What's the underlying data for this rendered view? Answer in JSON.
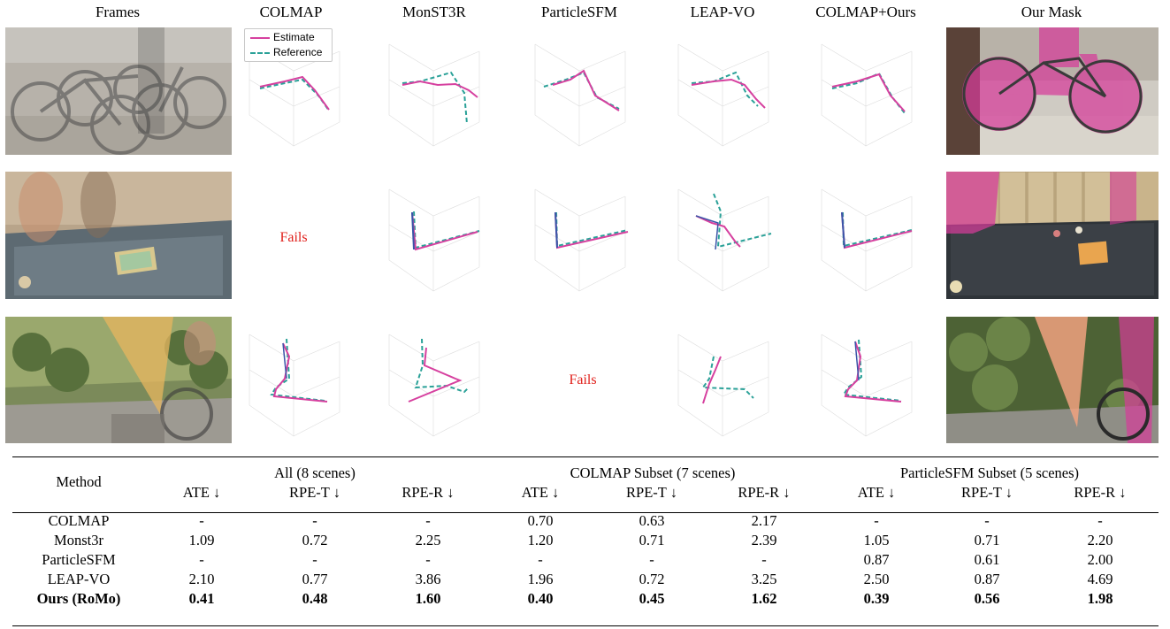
{
  "figure": {
    "column_headers": [
      "Frames",
      "COLMAP",
      "MonST3R",
      "ParticleSFM",
      "LEAP-VO",
      "COLMAP+Ours",
      "Our Mask"
    ],
    "legend": {
      "estimate": "Estimate",
      "reference": "Reference"
    },
    "fails_label": "Fails",
    "colors": {
      "estimate": "#d6409f",
      "reference": "#2aa198",
      "fails": "#e0201b",
      "mask": "#d63c9a"
    }
  },
  "table": {
    "method_header": "Method",
    "groups": [
      "All (8 scenes)",
      "COLMAP Subset (7 scenes)",
      "ParticleSFM Subset (5 scenes)"
    ],
    "metrics": [
      "ATE ↓",
      "RPE-T ↓",
      "RPE-R ↓",
      "ATE ↓",
      "RPE-T ↓",
      "RPE-R ↓",
      "ATE ↓",
      "RPE-T ↓",
      "RPE-R ↓"
    ],
    "rows": [
      {
        "method": "COLMAP",
        "values": [
          "-",
          "-",
          "-",
          "0.70",
          "0.63",
          "2.17",
          "-",
          "-",
          "-"
        ]
      },
      {
        "method": "Monst3r",
        "values": [
          "1.09",
          "0.72",
          "2.25",
          "1.20",
          "0.71",
          "2.39",
          "1.05",
          "0.71",
          "2.20"
        ]
      },
      {
        "method": "ParticleSFM",
        "values": [
          "-",
          "-",
          "-",
          "-",
          "-",
          "-",
          "0.87",
          "0.61",
          "2.00"
        ]
      },
      {
        "method": "LEAP-VO",
        "values": [
          "2.10",
          "0.77",
          "3.86",
          "1.96",
          "0.72",
          "3.25",
          "2.50",
          "0.87",
          "4.69"
        ]
      },
      {
        "method": "Ours (RoMo)",
        "values": [
          "0.41",
          "0.48",
          "1.60",
          "0.40",
          "0.45",
          "1.62",
          "0.39",
          "0.56",
          "1.98"
        ]
      }
    ]
  }
}
